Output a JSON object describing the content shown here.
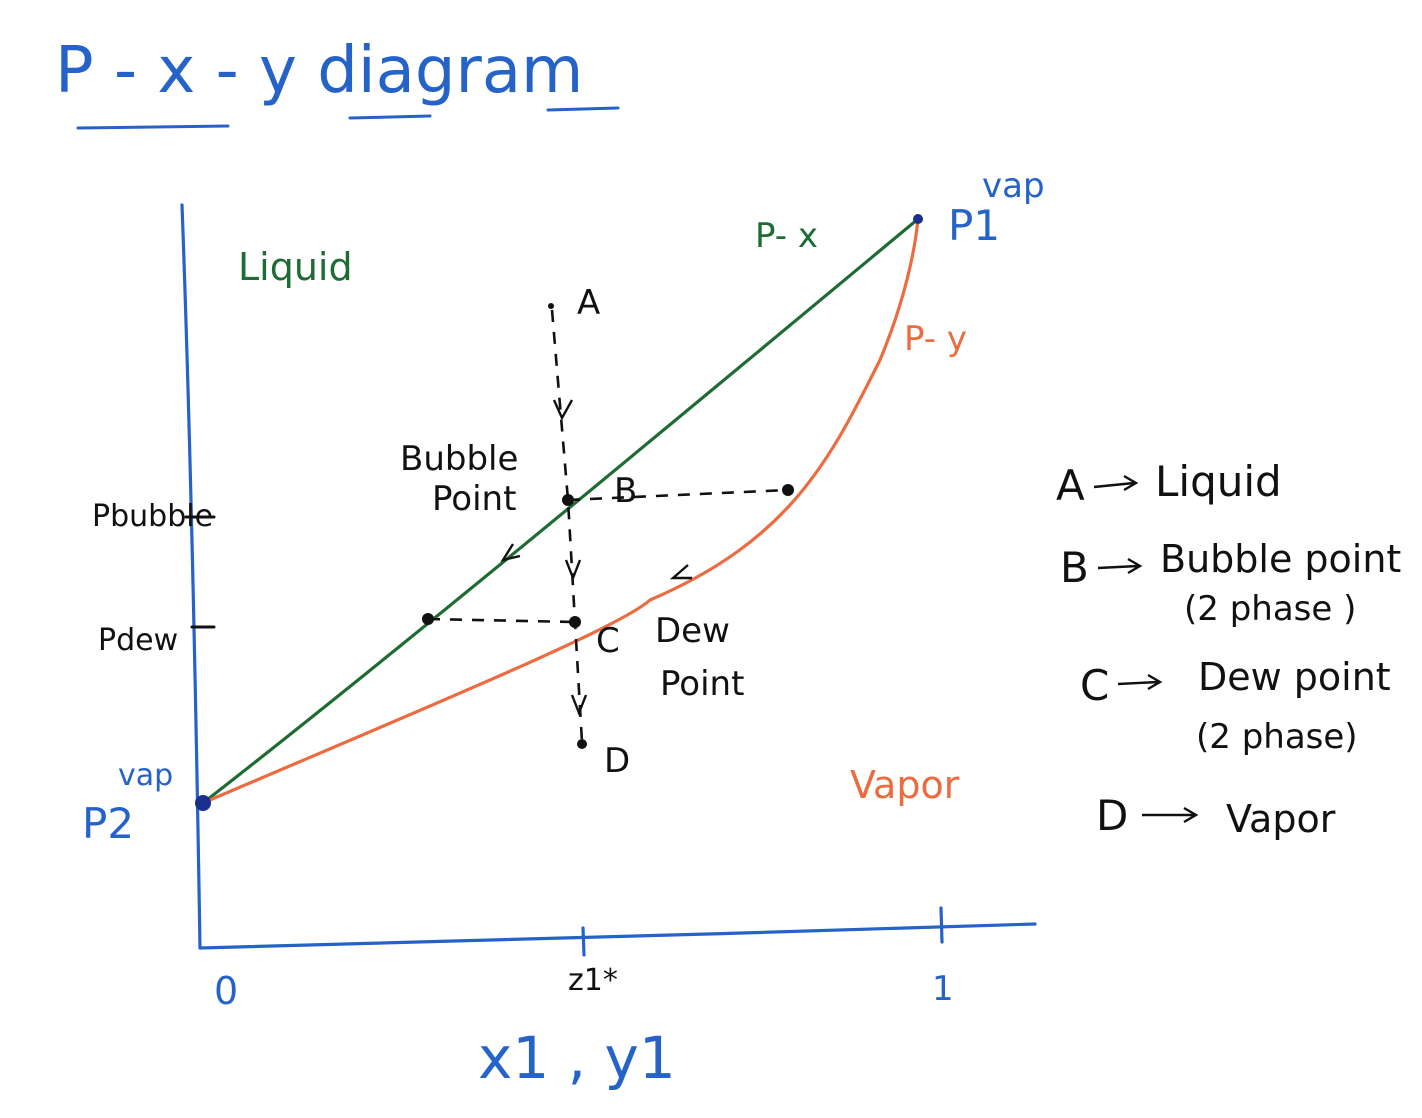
{
  "title": "P - x - y diagram",
  "x_axis_label": "x1 , y1",
  "ticks": {
    "x_zero": "0",
    "x_z1": "z1*",
    "x_one": "1",
    "y_bubble": "Pbubble",
    "y_dew": "Pdew"
  },
  "endpoints": {
    "p1": "P1",
    "p1_sup": "vap",
    "p2": "P2",
    "p2_sup": "vap"
  },
  "curves": {
    "px_label": "P- x",
    "py_label": "P- y",
    "px_color": "#1f6b34",
    "py_color": "#ec6b3f"
  },
  "regions": {
    "liquid": "Liquid",
    "vapor": "Vapor"
  },
  "points": {
    "a": "A",
    "b": "B",
    "c": "C",
    "d": "D"
  },
  "annotations": {
    "bubble_line1": "Bubble",
    "bubble_line2": "Point",
    "dew_line1": "Dew",
    "dew_line2": "Point"
  },
  "legend": {
    "a_key": "A",
    "a_value": "Liquid",
    "b_key": "B",
    "b_value": "Bubble point",
    "b_note": "(2 phase )",
    "c_key": "C",
    "c_value": "Dew point",
    "c_note": "(2 phase)",
    "d_key": "D",
    "d_value": "Vapor"
  },
  "colors": {
    "axes": "#2563c9",
    "annotations": "#111111"
  }
}
